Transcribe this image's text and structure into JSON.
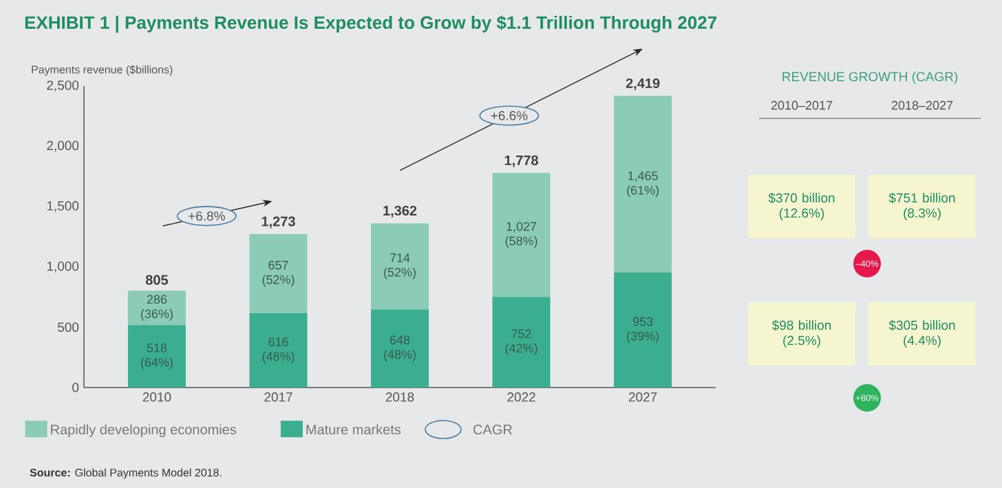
{
  "chart_data": [
    {
      "type": "bar",
      "stacked": true,
      "title": "EXHIBIT 1 | Payments Revenue Is Expected to Grow by $1.1 Trillion Through 2027",
      "ylabel": "Payments revenue ($billions)",
      "categories": [
        "2010",
        "2017",
        "2018",
        "2022",
        "2027"
      ],
      "series": [
        {
          "name": "Mature markets",
          "color": "#3aae8e",
          "values": [
            518,
            616,
            648,
            752,
            953
          ],
          "value_labels": [
            "518 (64%)",
            "616 (48%)",
            "648 (48%)",
            "752 (42%)",
            "953 (39%)"
          ]
        },
        {
          "name": "Rapidly developing economies",
          "color": "#8ccbb6",
          "values": [
            286,
            657,
            714,
            1027,
            1465
          ],
          "value_labels": [
            "286 (36%)",
            "657 (52%)",
            "714 (52%)",
            "1,027 (58%)",
            "1,465 (61%)"
          ]
        }
      ],
      "totals": [
        "805",
        "1,273",
        "1,362",
        "1,778",
        "2,419"
      ],
      "ylim": [
        0,
        2500
      ],
      "yticks": [
        0,
        500,
        {
          "value": 1000,
          "label": "1,000"
        },
        {
          "value": 1500,
          "label": "1,500"
        },
        {
          "value": 2000,
          "label": "2,000"
        },
        {
          "value": 2500,
          "label": "2,500"
        }
      ],
      "legend": "bottom left",
      "annotations": [
        "+6.8%",
        "+6.6%",
        "CAGR",
        "**Source:** Global Payments Model 2018."
      ]
    },
    {
      "type": "other",
      "title": "REVENUE GROWTH (CAGR)",
      "categories": [
        "2010–2017",
        "2018–2027"
      ],
      "annotations": [
        "$370 billion (12.6%)",
        "$751 billion (8.3%)",
        "–40%",
        "$98 billion (2.5%)",
        "$305 billion (4.4%)",
        "+80%"
      ],
      "colors": [
        "#e5194c",
        "#2eb35e"
      ]
    }
  ]
}
